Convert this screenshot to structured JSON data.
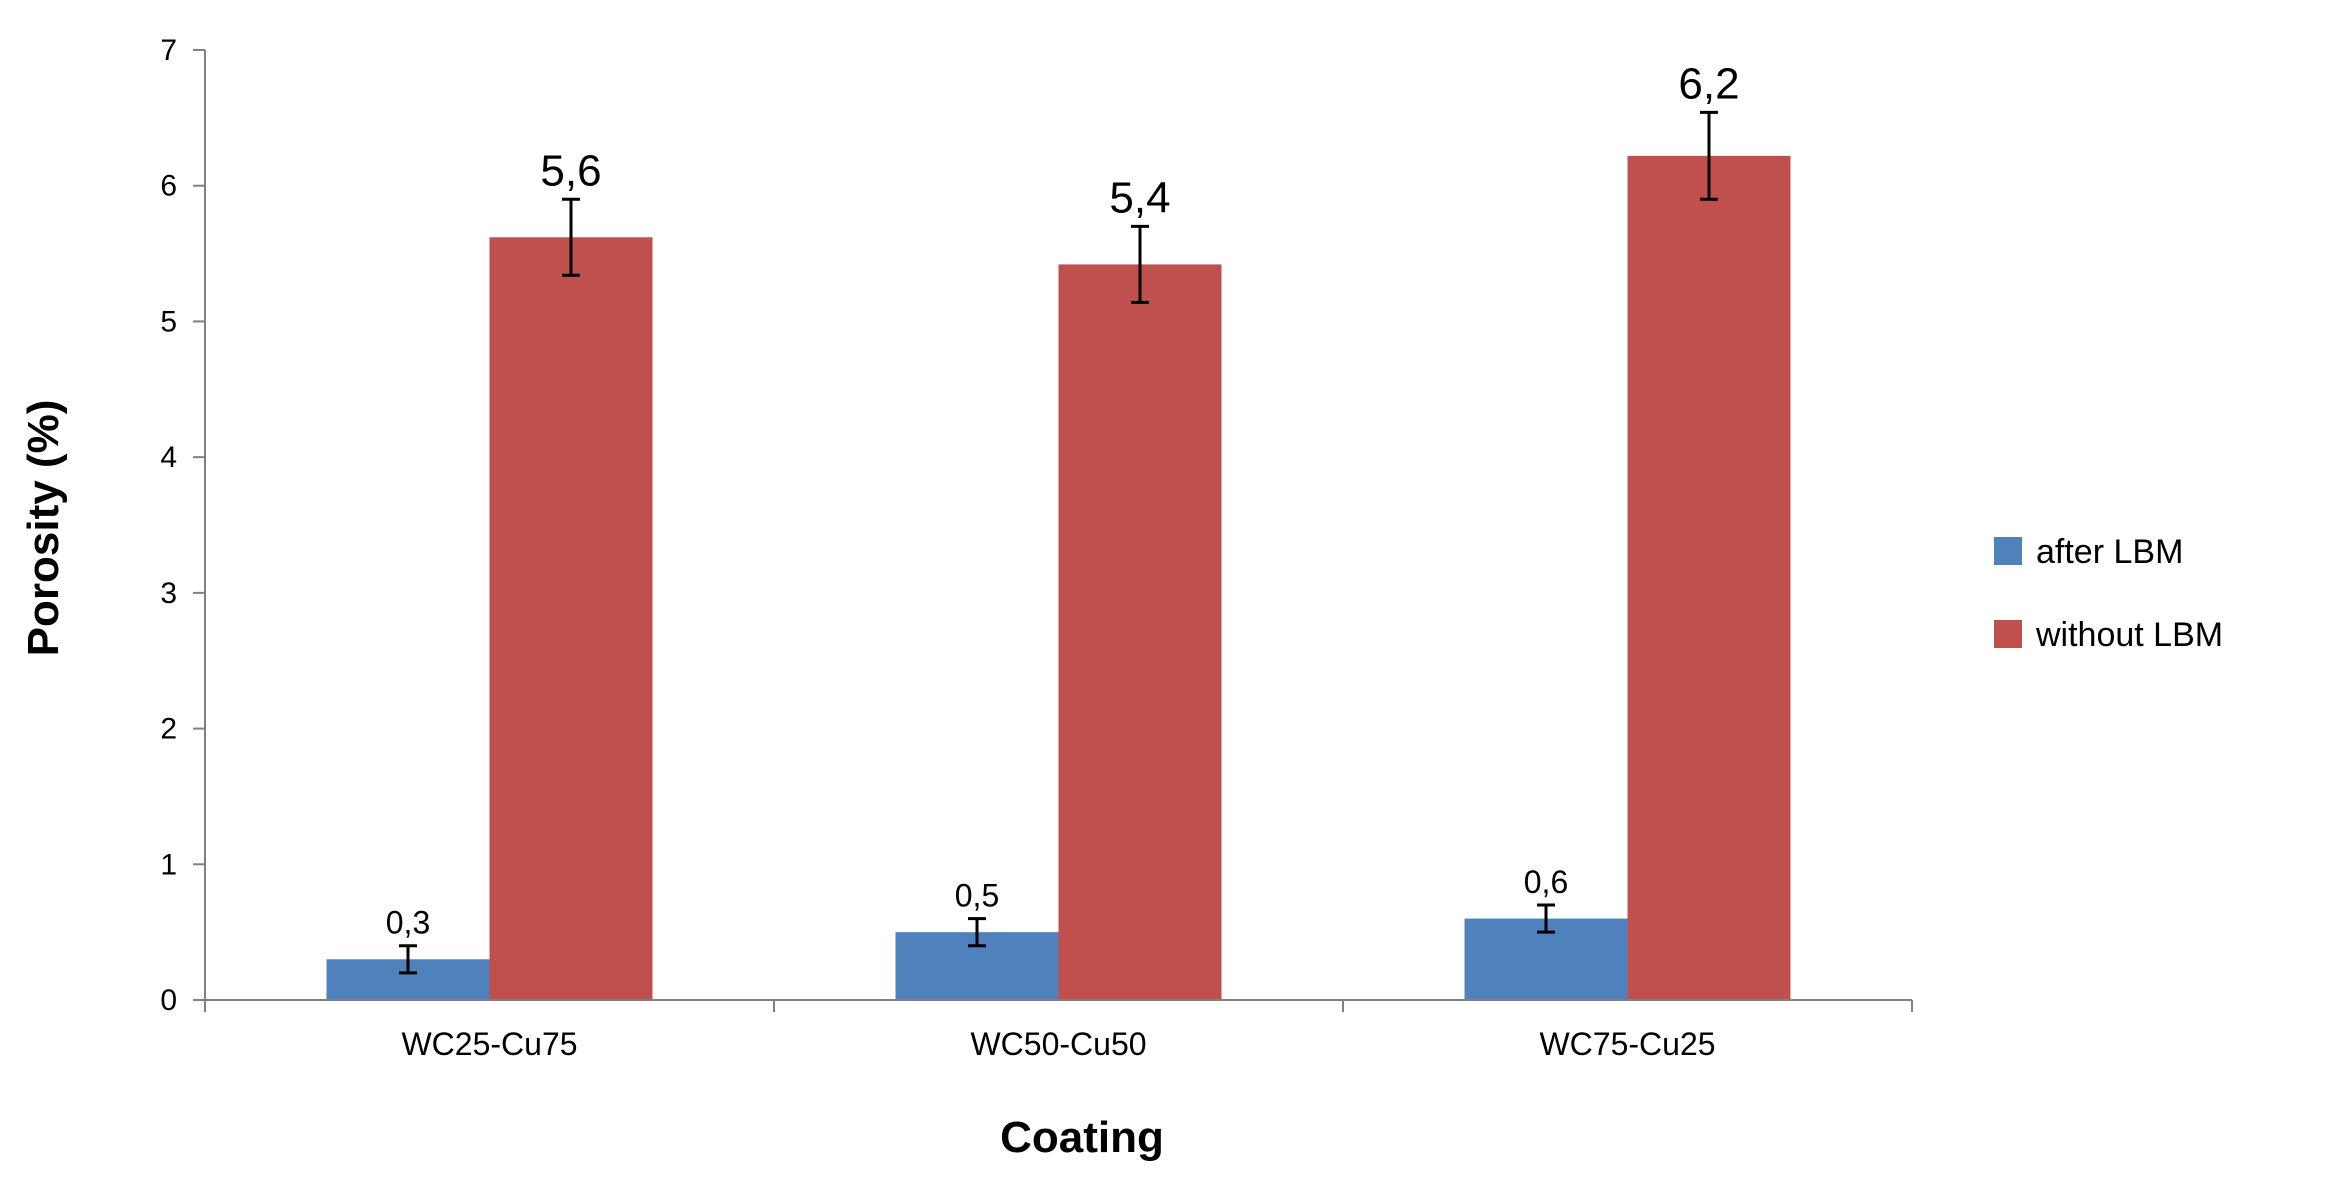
{
  "chart_data": {
    "type": "bar",
    "title": "",
    "xlabel": "Coating",
    "ylabel": "Porosity  (%)",
    "ylim": [
      0,
      7
    ],
    "yticks": [
      0,
      1,
      2,
      3,
      4,
      5,
      6,
      7
    ],
    "grid": false,
    "legend_position": "right",
    "categories": [
      "WC25-Cu75",
      "WC50-Cu50",
      "WC75-Cu25"
    ],
    "series": [
      {
        "name": "after LBM",
        "color": "#4f81bd",
        "values": [
          0.3,
          0.5,
          0.6
        ],
        "errors": [
          0.1,
          0.1,
          0.1
        ],
        "labels": [
          "0,3",
          "0,5",
          "0,6"
        ]
      },
      {
        "name": "without LBM",
        "color": "#c0504d",
        "values": [
          5.62,
          5.42,
          6.22
        ],
        "errors": [
          0.28,
          0.28,
          0.32
        ],
        "labels": [
          "5,6",
          "5,4",
          "6,2"
        ]
      }
    ]
  }
}
